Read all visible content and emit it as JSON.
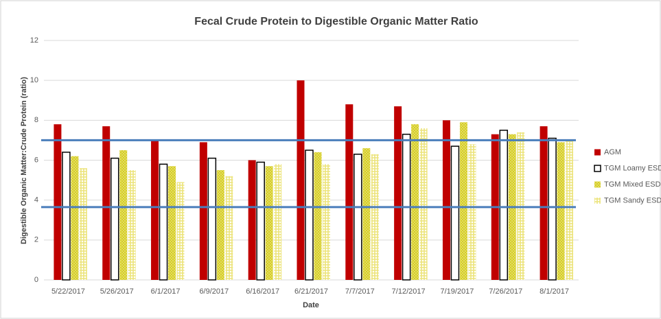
{
  "chart_data": {
    "type": "bar",
    "title": "Fecal Crude Protein to Digestible Organic Matter Ratio",
    "x_label": "Date",
    "y_label": "Digestible Organic Matter:Crude Protein (ratio)",
    "categories": [
      "5/22/2017",
      "5/26/2017",
      "6/1/2017",
      "6/9/2017",
      "6/16/2017",
      "6/21/2017",
      "7/7/2017",
      "7/12/2017",
      "7/19/2017",
      "7/26/2017",
      "8/1/2017"
    ],
    "series": [
      {
        "name": "AGM",
        "color": "#c00000",
        "values": [
          7.8,
          7.7,
          7.0,
          6.9,
          6.0,
          10.0,
          8.8,
          8.7,
          8.0,
          7.3,
          7.7
        ]
      },
      {
        "name": "TGM Loamy ESD",
        "color": "#ffffff",
        "values": [
          6.4,
          6.1,
          5.8,
          6.1,
          5.9,
          6.5,
          6.3,
          7.3,
          6.7,
          7.5,
          7.1
        ]
      },
      {
        "name": "TGM Mixed ESD",
        "color": "#d4cc1c",
        "values": [
          6.2,
          6.5,
          5.7,
          5.5,
          5.7,
          6.4,
          6.6,
          7.8,
          7.9,
          7.3,
          6.9
        ]
      },
      {
        "name": "TGM Sandy ESD",
        "color": "#ece47a",
        "values": [
          5.6,
          5.5,
          4.9,
          5.2,
          5.8,
          5.8,
          6.3,
          7.6,
          6.8,
          7.4,
          7.0
        ]
      }
    ],
    "reference_lines": {
      "values": [
        7.0,
        3.65
      ],
      "color": "#4a7ebb"
    },
    "ylim": [
      0,
      12
    ],
    "yticks": [
      0,
      2,
      4,
      6,
      8,
      10,
      12
    ],
    "grid": true,
    "legend": "right"
  }
}
